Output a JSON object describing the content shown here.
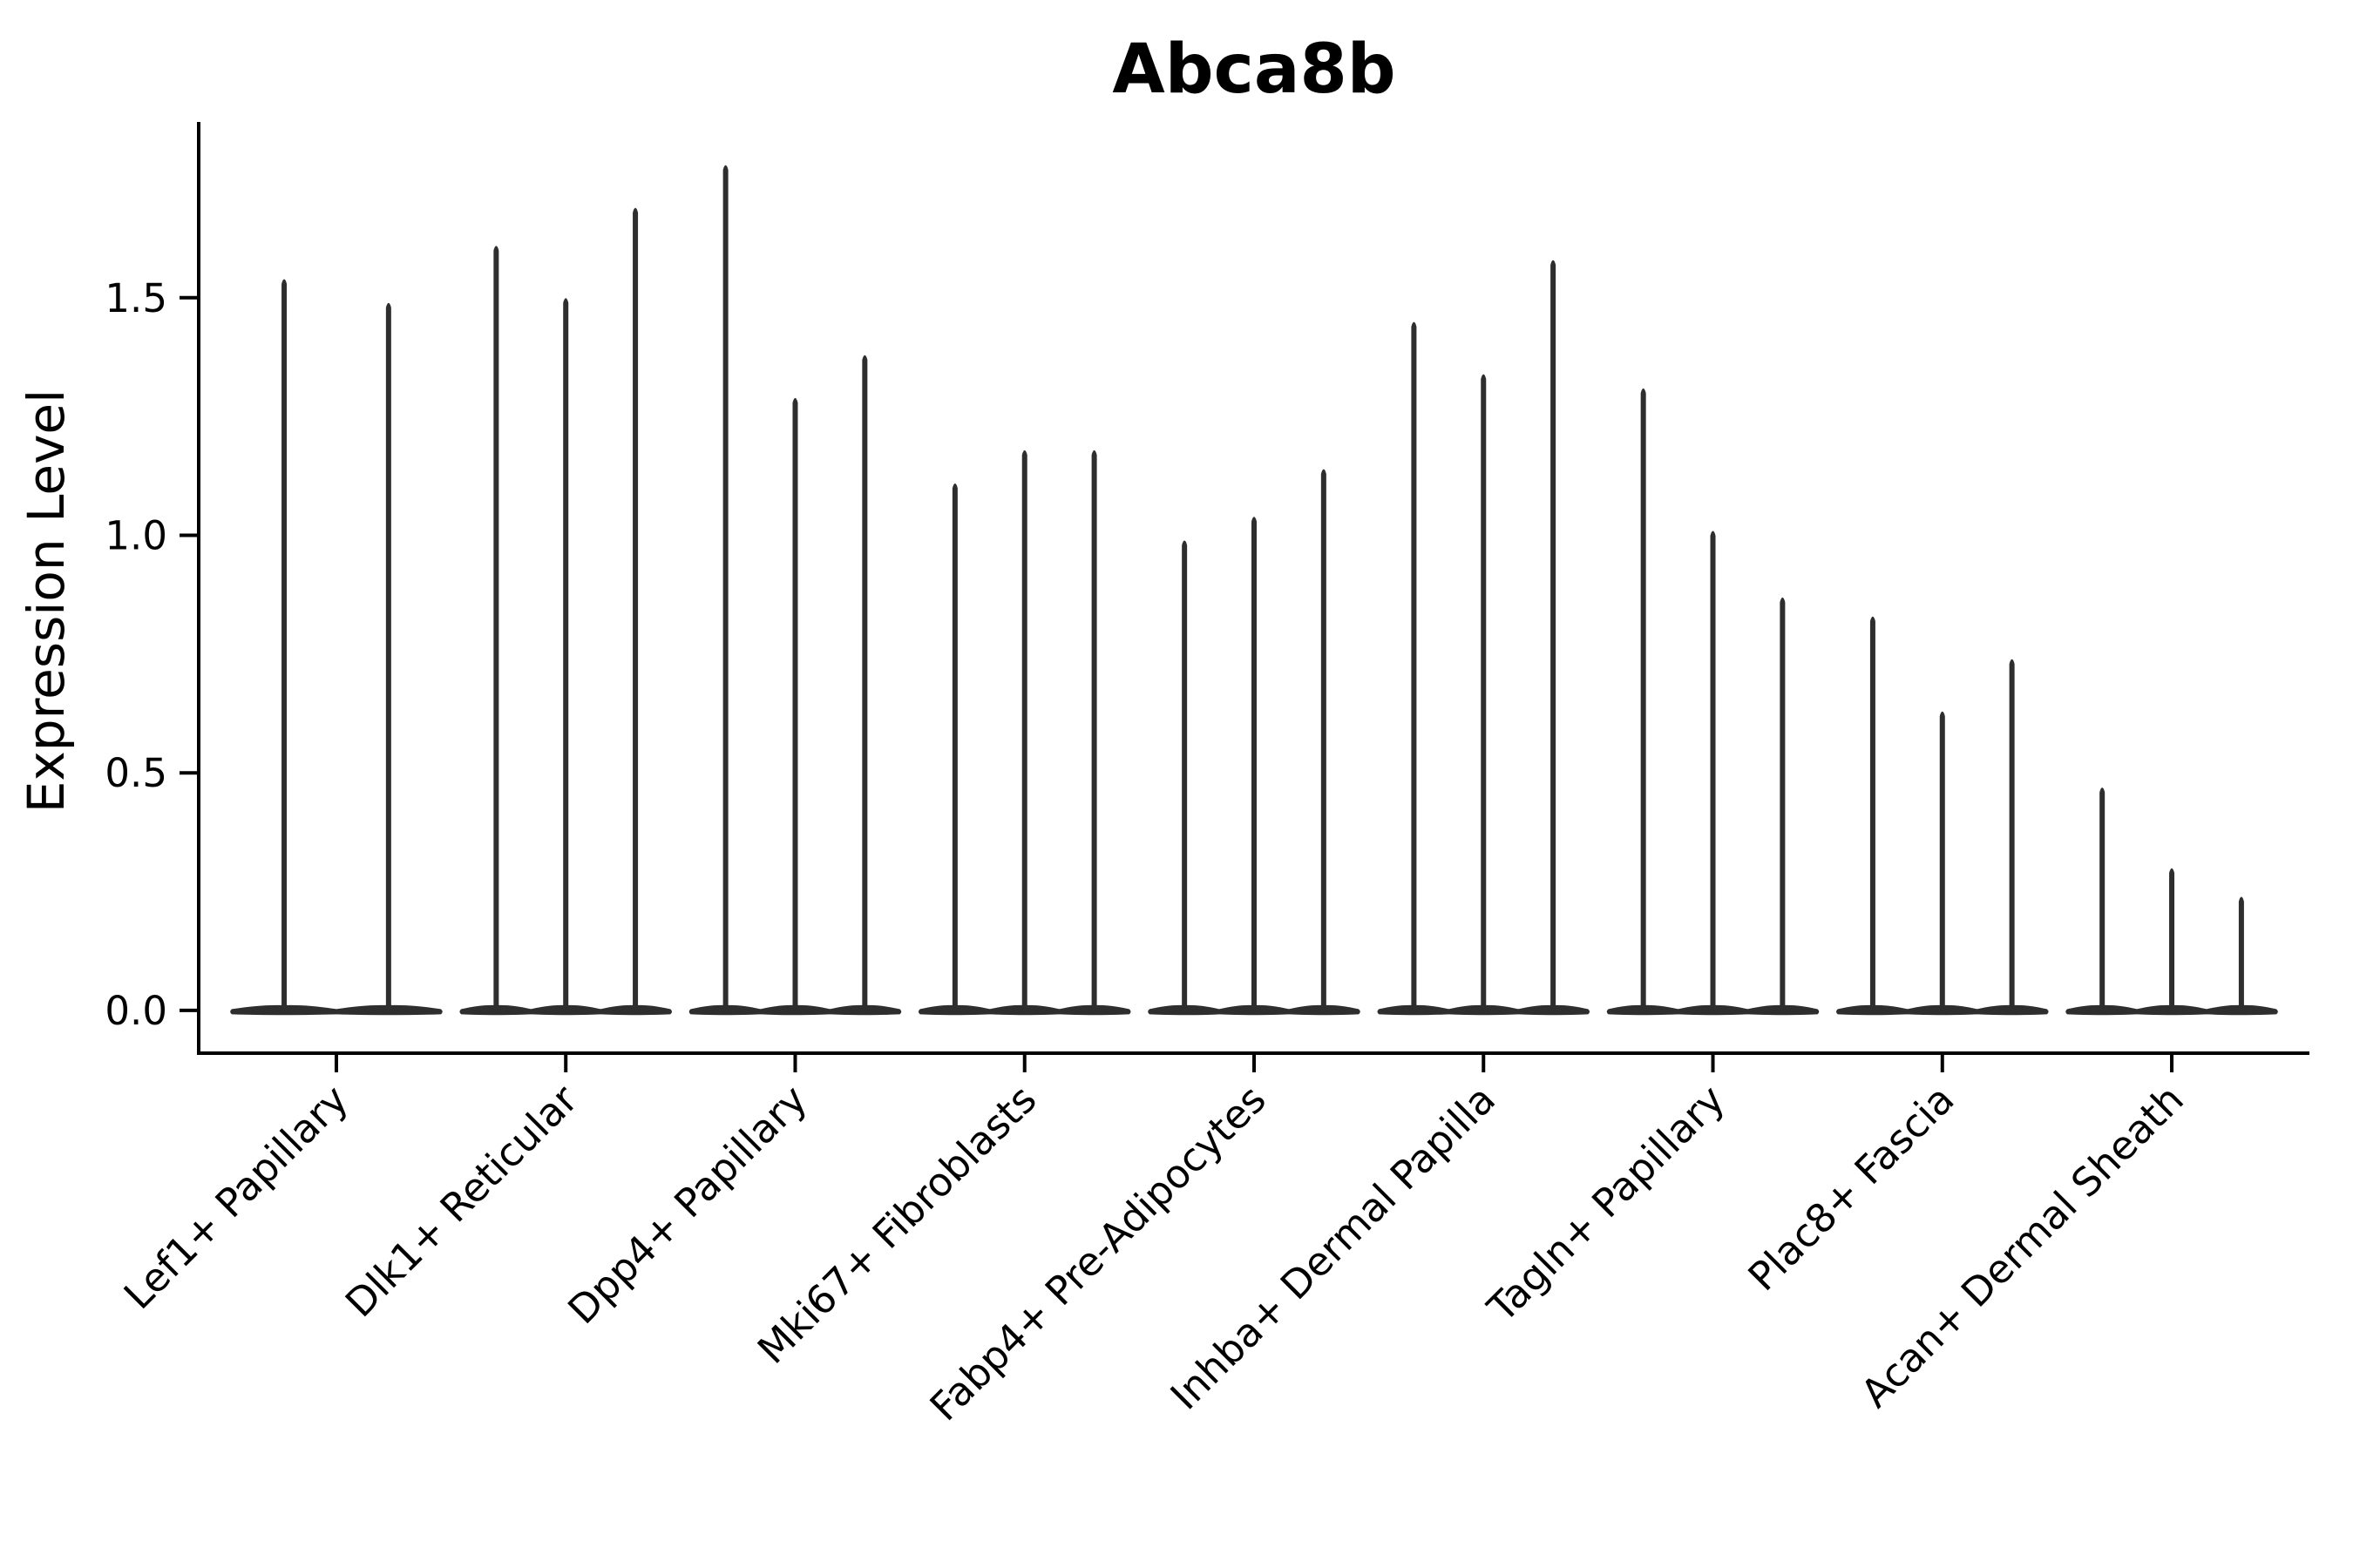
{
  "colors": {
    "violin": "#2e2e2e",
    "axis": "#000000",
    "text": "#000000",
    "background": "#ffffff"
  },
  "chart_data": {
    "type": "violin",
    "title": "Abca8b",
    "xlabel": "",
    "ylabel": "Expression Level",
    "grid": false,
    "legend": "none",
    "yticks": [
      0.0,
      0.5,
      1.0,
      1.5
    ],
    "ylim": [
      -0.09,
      1.87
    ],
    "xlim": [
      -0.6,
      8.6
    ],
    "categories": [
      "Lef1+ Papillary",
      "Dlk1+ Reticular",
      "Dpp4+ Papillary",
      "Mki67+ Fibroblasts",
      "Fabp4+ Pre-Adipocytes",
      "Inhba+ Dermal Papilla",
      "Tagln+ Papillary",
      "Plac8+ Fascia",
      "Acan+ Dermal Sheath"
    ],
    "groups": [
      {
        "category": "Lef1+ Papillary",
        "violin_peaks": [
          1.54,
          1.49
        ]
      },
      {
        "category": "Dlk1+ Reticular",
        "violin_peaks": [
          1.61,
          1.5,
          1.69
        ]
      },
      {
        "category": "Dpp4+ Papillary",
        "violin_peaks": [
          1.78,
          1.29,
          1.38
        ]
      },
      {
        "category": "Mki67+ Fibroblasts",
        "violin_peaks": [
          1.11,
          1.18,
          1.18
        ]
      },
      {
        "category": "Fabp4+ Pre-Adipocytes",
        "violin_peaks": [
          0.99,
          1.04,
          1.14
        ]
      },
      {
        "category": "Inhba+ Dermal Papilla",
        "violin_peaks": [
          1.45,
          1.34,
          1.58
        ]
      },
      {
        "category": "Tagln+ Papillary",
        "violin_peaks": [
          1.31,
          1.01,
          0.87
        ]
      },
      {
        "category": "Plac8+ Fascia",
        "violin_peaks": [
          0.83,
          0.63,
          0.74
        ]
      },
      {
        "category": "Acan+ Dermal Sheath",
        "violin_peaks": [
          0.47,
          0.3,
          0.24
        ]
      }
    ],
    "violin_shape_note": "density mass at 0 (wide flat base) with single thin spike to peak"
  }
}
